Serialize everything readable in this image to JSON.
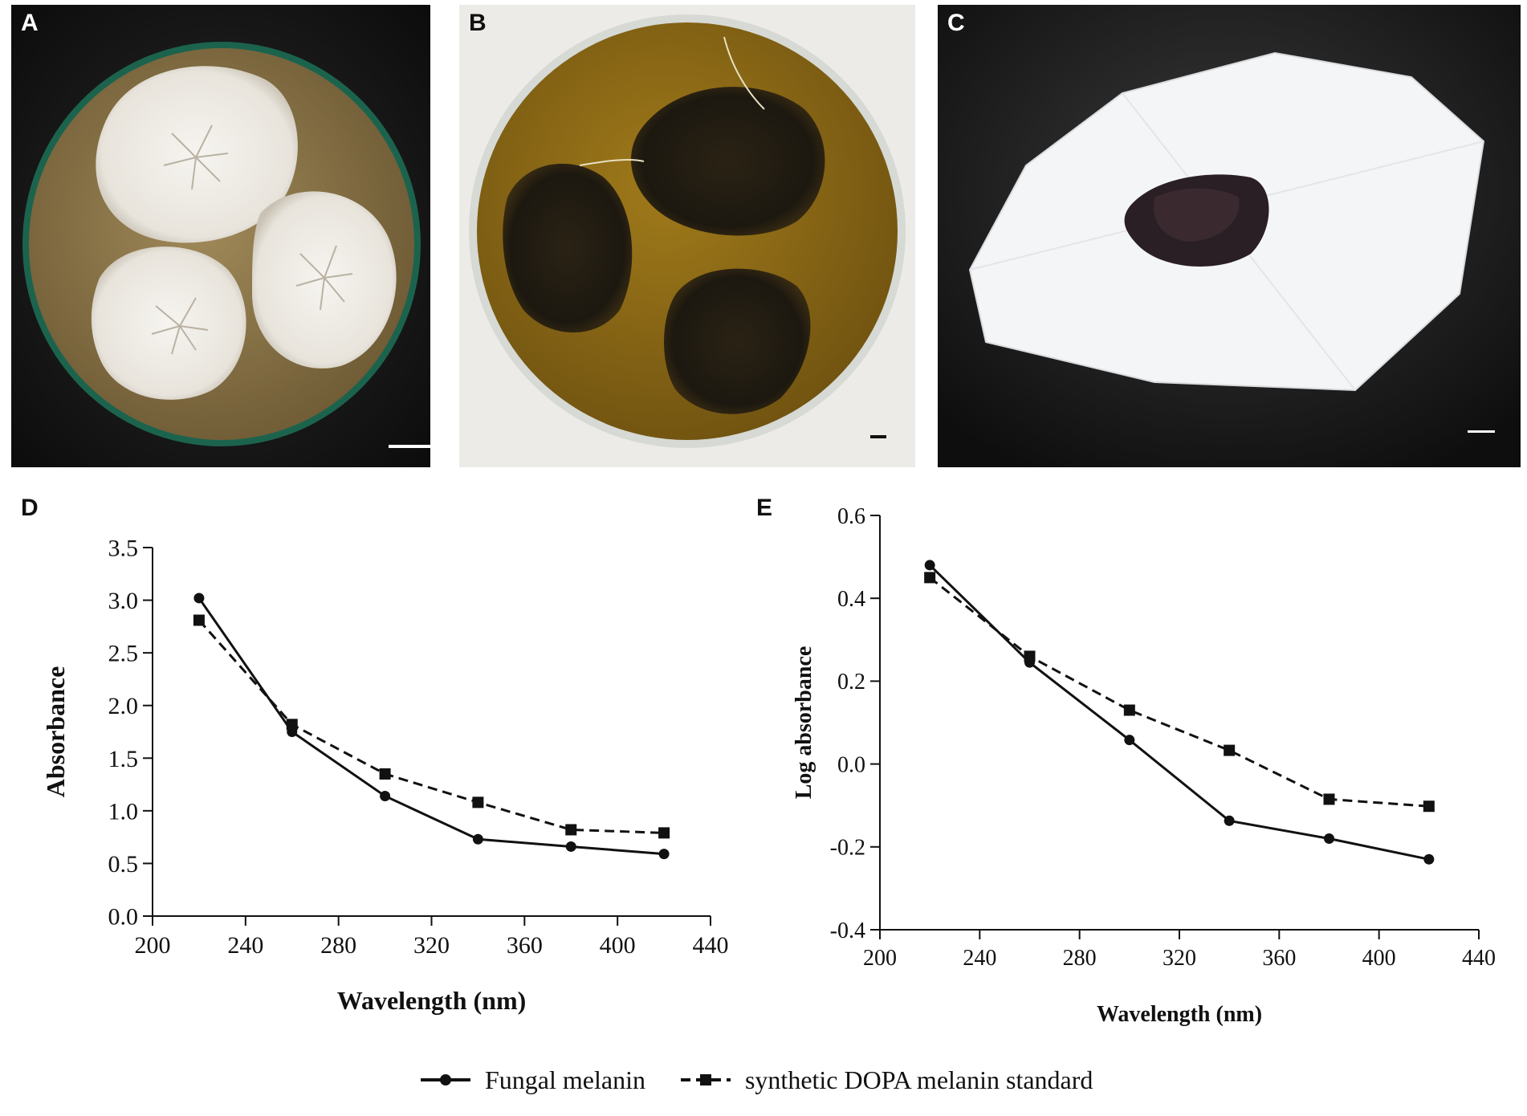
{
  "panels": {
    "a": {
      "letter": "A"
    },
    "b": {
      "letter": "B"
    },
    "c": {
      "letter": "C"
    },
    "d": {
      "letter": "D"
    },
    "e": {
      "letter": "E"
    }
  },
  "legend": {
    "fungal": "Fungal melanin",
    "synthetic": "synthetic DOPA melanin standard"
  },
  "colors": {
    "line": "#111111",
    "agar_a": "#9a8352",
    "agar_b": "#8c6a14",
    "colony_white": "#f2f0ec",
    "colony_dark": "#1c1a14"
  },
  "chart_data": [
    {
      "type": "line",
      "panel": "D",
      "xlabel": "Wavelength (nm)",
      "ylabel": "Absorbance",
      "xlim": [
        200,
        440
      ],
      "ylim": [
        0.0,
        3.5
      ],
      "xticks": [
        "200",
        "240",
        "280",
        "320",
        "360",
        "400",
        "440"
      ],
      "yticks": [
        "0.0",
        "0.5",
        "1.0",
        "1.5",
        "2.0",
        "2.5",
        "3.0",
        "3.5"
      ],
      "x": [
        220,
        260,
        300,
        340,
        380,
        420
      ],
      "series": [
        {
          "name": "Fungal melanin",
          "marker": "circle",
          "dash": "solid",
          "values": [
            3.02,
            1.75,
            1.14,
            0.73,
            0.66,
            0.59
          ]
        },
        {
          "name": "synthetic DOPA melanin standard",
          "marker": "square",
          "dash": "dashed",
          "values": [
            2.81,
            1.82,
            1.35,
            1.08,
            0.82,
            0.79
          ]
        }
      ]
    },
    {
      "type": "line",
      "panel": "E",
      "xlabel": "Wavelength (nm)",
      "ylabel": "Log absorbance",
      "xlim": [
        200,
        440
      ],
      "ylim": [
        -0.4,
        0.6
      ],
      "xticks": [
        "200",
        "240",
        "280",
        "320",
        "360",
        "400",
        "440"
      ],
      "yticks": [
        "-0.4",
        "-0.2",
        "0.0",
        "0.2",
        "0.4",
        "0.6"
      ],
      "x": [
        220,
        260,
        300,
        340,
        380,
        420
      ],
      "series": [
        {
          "name": "Fungal melanin",
          "marker": "circle",
          "dash": "solid",
          "values": [
            0.48,
            0.245,
            0.058,
            -0.137,
            -0.18,
            -0.23
          ]
        },
        {
          "name": "synthetic DOPA melanin standard",
          "marker": "square",
          "dash": "dashed",
          "values": [
            0.45,
            0.26,
            0.13,
            0.033,
            -0.085,
            -0.102
          ]
        }
      ]
    }
  ]
}
